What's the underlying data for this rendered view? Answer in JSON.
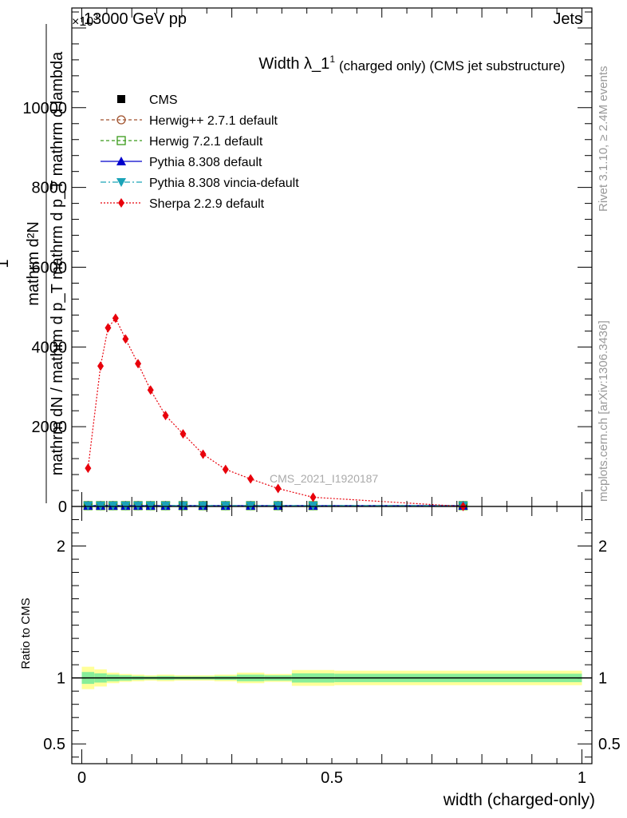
{
  "header": {
    "energy_label": "13000 GeV pp",
    "process_label": "Jets",
    "exponent_label": "×10",
    "exponent_sup": "3"
  },
  "side_text": {
    "rivet": "Rivet 3.1.10, ≥ 2.4M events",
    "mcplots": "mcplots.cern.ch [arXiv:1306.3436]"
  },
  "chart_data": [
    {
      "type": "line",
      "panel": "main",
      "title": "Width λ_1",
      "title_sup": "1",
      "subtitle": "(charged only) (CMS jet substructure)",
      "ylabel_lines": [
        "1",
        "mathrm dN / mathrm d p_T mathrm d p_T mathrm d lambda",
        "mathrm d²N"
      ],
      "ylim": [
        0,
        12500
      ],
      "xlim": [
        -0.02,
        1.02
      ],
      "yticks": [
        0,
        2000,
        4000,
        6000,
        8000,
        10000
      ],
      "ytick_labels": [
        "0",
        "2000",
        "4000",
        "6000",
        "8000",
        "10000"
      ],
      "watermark": "CMS_2021_I1920187",
      "legend_position": "top-left",
      "series": [
        {
          "name": "CMS",
          "style": "square-marker",
          "color": "#000000",
          "x": [
            0.0125,
            0.0375,
            0.0625,
            0.0875,
            0.1125,
            0.1375,
            0.1675,
            0.2025,
            0.2425,
            0.2875,
            0.3375,
            0.3925,
            0.4625,
            0.7625
          ],
          "y": [
            20,
            20,
            20,
            20,
            20,
            20,
            20,
            20,
            20,
            20,
            20,
            20,
            20,
            20
          ]
        },
        {
          "name": "Herwig++ 2.7.1 default",
          "style": "open-circle-dashed",
          "color": "#a0522d",
          "x": [
            0.0125,
            0.0375,
            0.0625,
            0.0875,
            0.1125,
            0.1375,
            0.1675,
            0.2025,
            0.2425,
            0.2875,
            0.3375,
            0.3925,
            0.4625,
            0.7625
          ],
          "y": [
            20,
            20,
            20,
            20,
            20,
            20,
            20,
            20,
            20,
            20,
            20,
            20,
            20,
            20
          ]
        },
        {
          "name": "Herwig 7.2.1 default",
          "style": "open-square-dashed",
          "color": "#3a9a1a",
          "x": [
            0.0125,
            0.0375,
            0.0625,
            0.0875,
            0.1125,
            0.1375,
            0.1675,
            0.2025,
            0.2425,
            0.2875,
            0.3375,
            0.3925,
            0.4625,
            0.7625
          ],
          "y": [
            20,
            20,
            20,
            20,
            20,
            20,
            20,
            20,
            20,
            20,
            20,
            20,
            20,
            20
          ]
        },
        {
          "name": "Pythia 8.308 default",
          "style": "triangle-up-solid",
          "color": "#0000cc",
          "x": [
            0.0125,
            0.0375,
            0.0625,
            0.0875,
            0.1125,
            0.1375,
            0.1675,
            0.2025,
            0.2425,
            0.2875,
            0.3375,
            0.3925,
            0.4625,
            0.7625
          ],
          "y": [
            20,
            20,
            20,
            20,
            20,
            20,
            20,
            20,
            20,
            20,
            20,
            20,
            20,
            20
          ]
        },
        {
          "name": "Pythia 8.308 vincia-default",
          "style": "triangle-down-dashdot",
          "color": "#1aa3b8",
          "x": [
            0.0125,
            0.0375,
            0.0625,
            0.0875,
            0.1125,
            0.1375,
            0.1675,
            0.2025,
            0.2425,
            0.2875,
            0.3375,
            0.3925,
            0.4625,
            0.7625
          ],
          "y": [
            20,
            20,
            20,
            20,
            20,
            20,
            20,
            20,
            20,
            20,
            20,
            20,
            20,
            20
          ]
        },
        {
          "name": "Sherpa 2.2.9 default",
          "style": "diamond-dotted",
          "color": "#e8000b",
          "x": [
            0.0125,
            0.0375,
            0.0525,
            0.0675,
            0.0875,
            0.1125,
            0.1375,
            0.1675,
            0.2025,
            0.2425,
            0.2875,
            0.3375,
            0.3925,
            0.4625,
            0.7625
          ],
          "y": [
            960,
            3520,
            4480,
            4720,
            4200,
            3580,
            2920,
            2280,
            1820,
            1310,
            930,
            690,
            450,
            230,
            0
          ]
        }
      ]
    },
    {
      "type": "line",
      "panel": "ratio",
      "ylabel": "Ratio to CMS",
      "xlabel": "width (charged-only)",
      "ylim": [
        0.35,
        2.3
      ],
      "xlim": [
        -0.02,
        1.02
      ],
      "yticks": [
        0.5,
        1,
        2
      ],
      "ytick_labels": [
        "0.5",
        "1",
        "2"
      ],
      "xticks": [
        0,
        0.5,
        1
      ],
      "xtick_labels": [
        "0",
        "0.5",
        "1"
      ],
      "band_edges": [
        0.0,
        0.025,
        0.05,
        0.075,
        0.1,
        0.125,
        0.15,
        0.185,
        0.22,
        0.265,
        0.31,
        0.365,
        0.42,
        0.505,
        1.0
      ],
      "band_yellow_half": [
        0.085,
        0.065,
        0.04,
        0.03,
        0.025,
        0.02,
        0.025,
        0.02,
        0.02,
        0.025,
        0.04,
        0.03,
        0.06,
        0.055
      ],
      "band_green_half": [
        0.045,
        0.035,
        0.025,
        0.02,
        0.015,
        0.012,
        0.015,
        0.012,
        0.012,
        0.015,
        0.025,
        0.02,
        0.035,
        0.032
      ],
      "reference": 1.0
    }
  ]
}
